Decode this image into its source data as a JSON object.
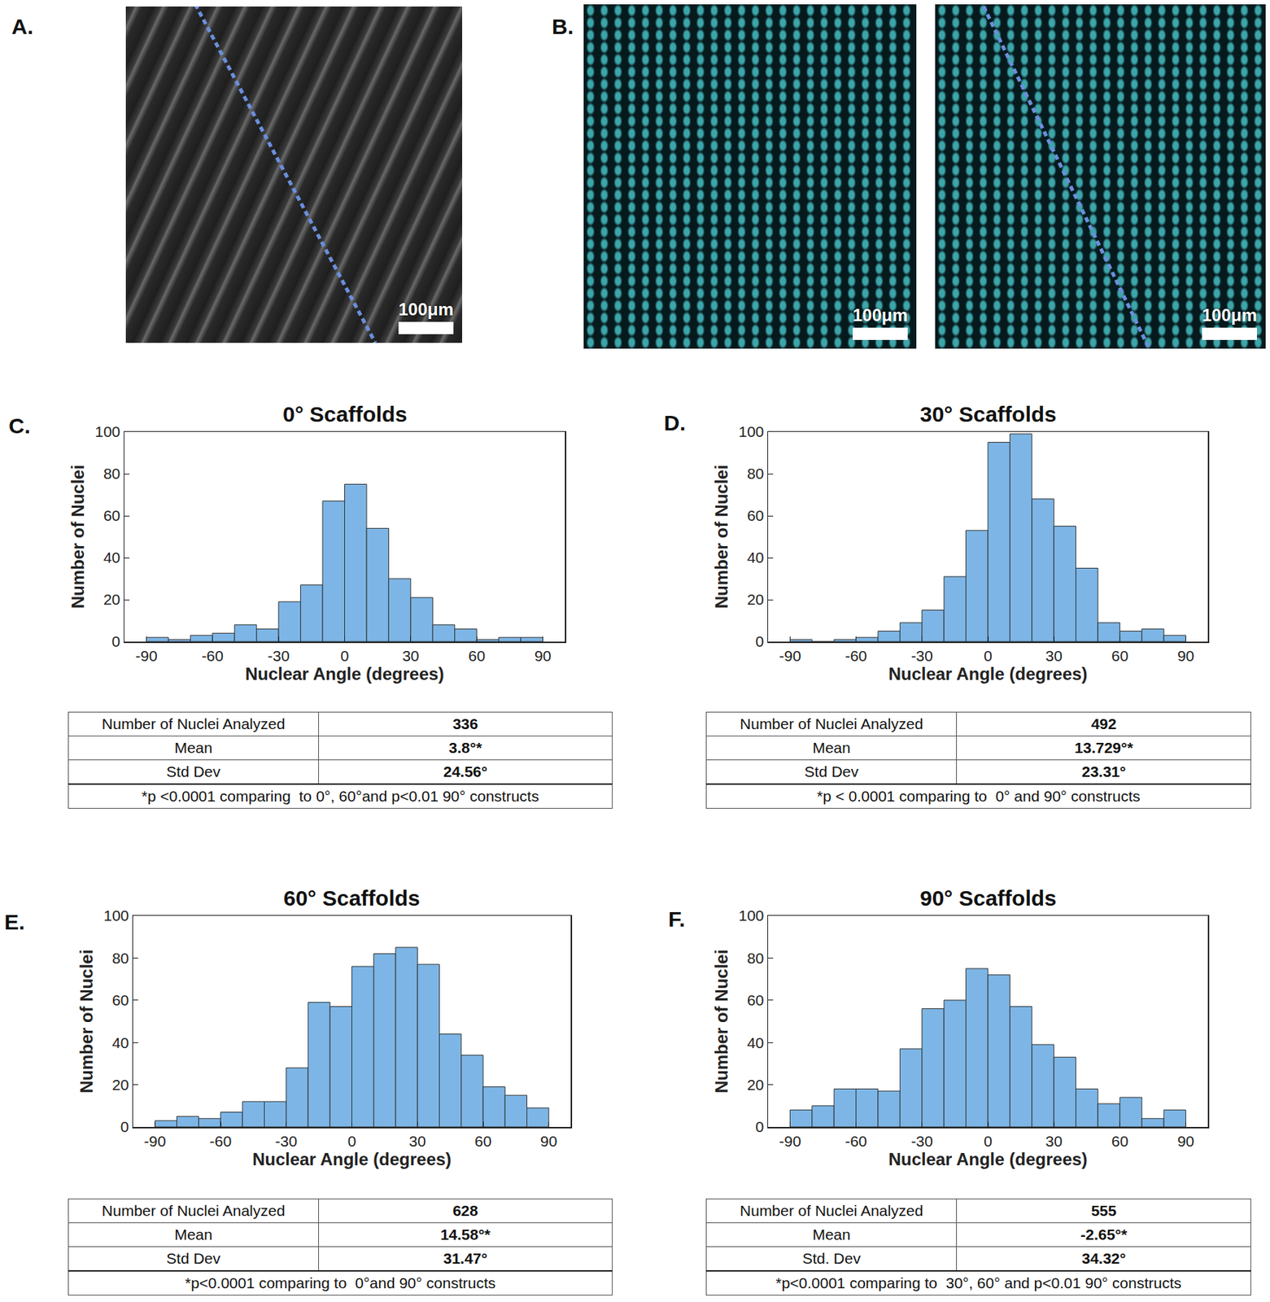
{
  "panels": {
    "A": {
      "label": "A.",
      "scale_bar": "100μm"
    },
    "B": {
      "label": "B.",
      "scale_bars": [
        "100μm",
        "100μm"
      ]
    }
  },
  "chart_data": [
    {
      "type": "histogram",
      "panel": "C.",
      "title": "0° Scaffolds",
      "xlabel": "Nuclear Angle (degrees)",
      "ylabel": "Number of Nuclei",
      "bins": [
        -90,
        -80,
        -70,
        -60,
        -50,
        -40,
        -30,
        -20,
        -10,
        0,
        10,
        20,
        30,
        40,
        50,
        60,
        70,
        80,
        90
      ],
      "values": [
        2,
        1,
        3,
        4,
        8,
        6,
        19,
        27,
        67,
        75,
        54,
        30,
        21,
        8,
        6,
        1,
        2,
        2
      ],
      "color": "#7db6e6",
      "xlim": [
        -100,
        100
      ],
      "ylim": [
        0,
        100
      ],
      "xticks": [
        -90,
        -60,
        -30,
        0,
        30,
        60,
        90
      ],
      "yticks": [
        0,
        20,
        40,
        60,
        80,
        100
      ],
      "grid": false,
      "table": {
        "rows": [
          [
            "Number of Nuclei Analyzed",
            "336"
          ],
          [
            "Mean",
            "3.8°*"
          ],
          [
            "Std Dev",
            "24.56°"
          ]
        ],
        "footnote": "*p <0.0001 comparing  to 0°, 60°and p<0.01 90° constructs"
      }
    },
    {
      "type": "histogram",
      "panel": "D.",
      "title": "30° Scaffolds",
      "xlabel": "Nuclear Angle (degrees)",
      "ylabel": "Number of Nuclei",
      "bins": [
        -90,
        -80,
        -70,
        -60,
        -50,
        -40,
        -30,
        -20,
        -10,
        0,
        10,
        20,
        30,
        40,
        50,
        60,
        70,
        80,
        90
      ],
      "values": [
        1,
        0,
        1,
        2,
        5,
        9,
        15,
        31,
        53,
        95,
        99,
        68,
        55,
        35,
        9,
        5,
        6,
        3
      ],
      "color": "#7db6e6",
      "xlim": [
        -100,
        100
      ],
      "ylim": [
        0,
        100
      ],
      "xticks": [
        -90,
        -60,
        -30,
        0,
        30,
        60,
        90
      ],
      "yticks": [
        0,
        20,
        40,
        60,
        80,
        100
      ],
      "grid": false,
      "table": {
        "rows": [
          [
            "Number of Nuclei Analyzed",
            "492"
          ],
          [
            "Mean",
            "13.729°*"
          ],
          [
            "Std Dev",
            "23.31°"
          ]
        ],
        "footnote": "*p < 0.0001 comparing to  0° and 90° constructs"
      }
    },
    {
      "type": "histogram",
      "panel": "E.",
      "title": "60° Scaffolds",
      "xlabel": "Nuclear Angle (degrees)",
      "ylabel": "Number of Nuclei",
      "bins": [
        -90,
        -80,
        -70,
        -60,
        -50,
        -40,
        -30,
        -20,
        -10,
        0,
        10,
        20,
        30,
        40,
        50,
        60,
        70,
        80,
        90
      ],
      "values": [
        3,
        5,
        4,
        7,
        12,
        12,
        28,
        59,
        57,
        76,
        82,
        85,
        77,
        44,
        34,
        19,
        15,
        9
      ],
      "color": "#7db6e6",
      "xlim": [
        -100,
        100
      ],
      "ylim": [
        0,
        100
      ],
      "xticks": [
        -90,
        -60,
        -30,
        0,
        30,
        60,
        90
      ],
      "yticks": [
        0,
        20,
        40,
        60,
        80,
        100
      ],
      "grid": false,
      "table": {
        "rows": [
          [
            "Number of Nuclei Analyzed",
            "628"
          ],
          [
            "Mean",
            "14.58°*"
          ],
          [
            "Std Dev",
            "31.47°"
          ]
        ],
        "footnote": "*p<0.0001 comparing to  0°and 90° constructs"
      }
    },
    {
      "type": "histogram",
      "panel": "F.",
      "title": "90° Scaffolds",
      "xlabel": "Nuclear Angle (degrees)",
      "ylabel": "Number of Nuclei",
      "bins": [
        -90,
        -80,
        -70,
        -60,
        -50,
        -40,
        -30,
        -20,
        -10,
        0,
        10,
        20,
        30,
        40,
        50,
        60,
        70,
        80,
        90
      ],
      "values": [
        8,
        10,
        18,
        18,
        17,
        37,
        56,
        60,
        75,
        72,
        57,
        39,
        33,
        18,
        11,
        14,
        4,
        8
      ],
      "color": "#7db6e6",
      "xlim": [
        -100,
        100
      ],
      "ylim": [
        0,
        100
      ],
      "xticks": [
        -90,
        -60,
        -30,
        0,
        30,
        60,
        90
      ],
      "yticks": [
        0,
        20,
        40,
        60,
        80,
        100
      ],
      "grid": false,
      "table": {
        "rows": [
          [
            "Number of Nuclei Analyzed",
            "555"
          ],
          [
            "Mean",
            "-2.65°*"
          ],
          [
            "Std. Dev",
            "34.32°"
          ]
        ],
        "footnote": "*p<0.0001 comparing to  30°, 60° and p<0.01 90° constructs"
      }
    }
  ]
}
